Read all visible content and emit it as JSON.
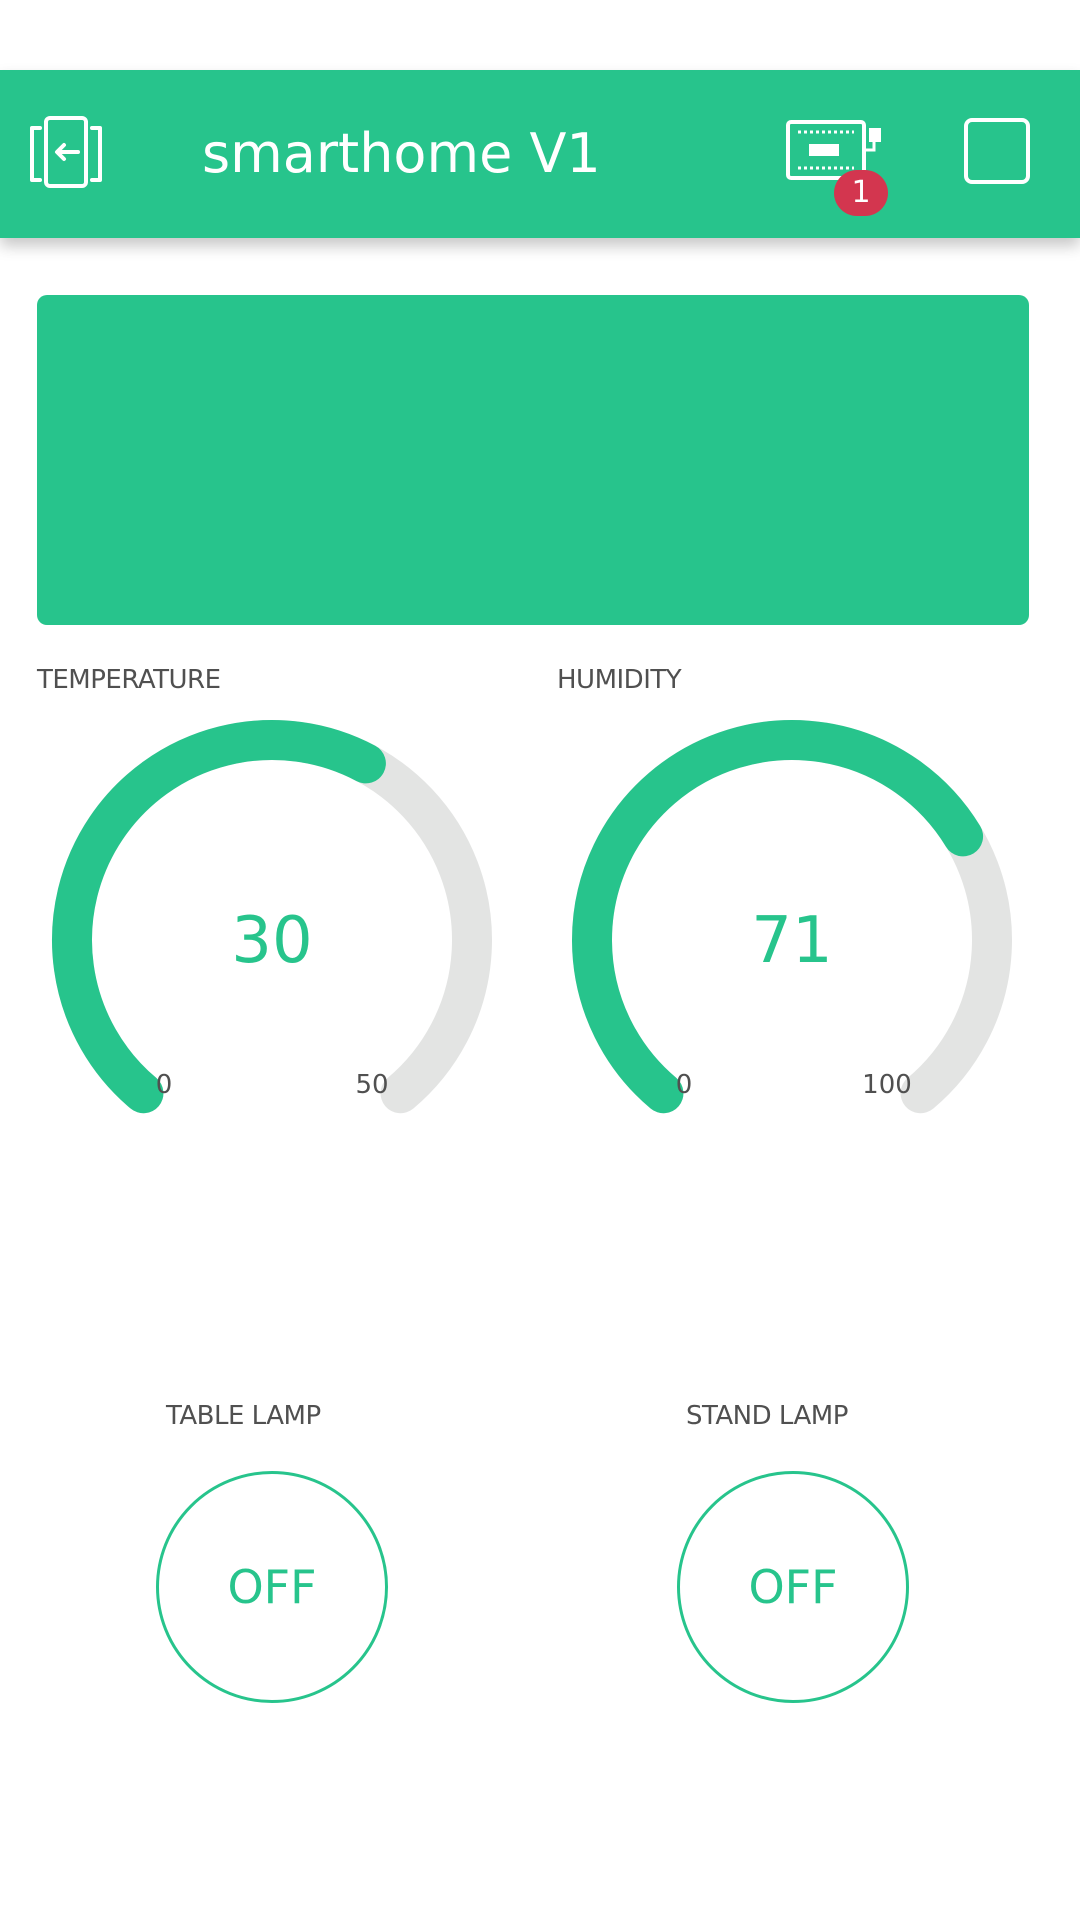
{
  "app_bar": {
    "title": "smarthome V1",
    "device_badge": "1",
    "background_color": "#27c48c",
    "badge_color": "#d3364f"
  },
  "icons": {
    "back": "exit-icon",
    "device": "device-board-icon",
    "square": "square-icon"
  },
  "gauges": [
    {
      "label": "TEMPERATURE",
      "value": 30,
      "min": 0,
      "max": 50,
      "value_text": "30",
      "min_text": "0",
      "max_text": "50"
    },
    {
      "label": "HUMIDITY",
      "value": 71,
      "min": 0,
      "max": 100,
      "value_text": "71",
      "min_text": "0",
      "max_text": "100"
    }
  ],
  "buttons": [
    {
      "label": "TABLE LAMP",
      "state": "OFF"
    },
    {
      "label": "STAND LAMP",
      "state": "OFF"
    }
  ],
  "colors": {
    "accent": "#27c48c",
    "track": "#e3e4e3",
    "label": "#505050"
  }
}
